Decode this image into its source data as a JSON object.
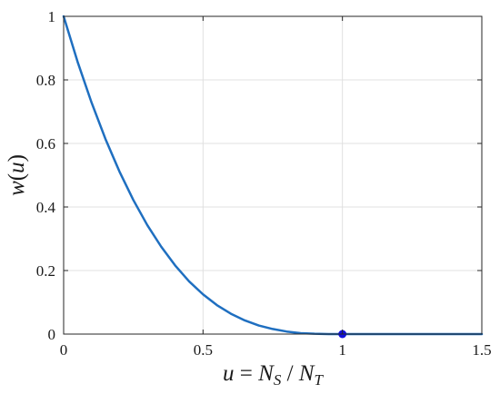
{
  "chart_data": {
    "type": "line",
    "title": "",
    "xlabel": "u = N_S / N_T",
    "ylabel": "w(u)",
    "xlim": [
      0,
      1.5
    ],
    "ylim": [
      0,
      1
    ],
    "grid": true,
    "x_ticks": [
      0,
      0.5,
      1,
      1.5
    ],
    "y_ticks": [
      0,
      0.2,
      0.4,
      0.6,
      0.8,
      1
    ],
    "x_tick_labels": [
      "0",
      "0.5",
      "1",
      "1.5"
    ],
    "y_tick_labels": [
      "0",
      "0.2",
      "0.4",
      "0.6",
      "0.8",
      "1"
    ],
    "series": [
      {
        "color": "#1f6fc0",
        "x": [
          0,
          0.05,
          0.1,
          0.15,
          0.2,
          0.25,
          0.3,
          0.35,
          0.4,
          0.45,
          0.5,
          0.55,
          0.6,
          0.65,
          0.7,
          0.75,
          0.8,
          0.85,
          0.9,
          0.95,
          1.0,
          1.05,
          1.1,
          1.15,
          1.2,
          1.25,
          1.3,
          1.35,
          1.4,
          1.45,
          1.5
        ],
        "y": [
          1.0,
          0.857,
          0.729,
          0.614,
          0.512,
          0.422,
          0.343,
          0.275,
          0.216,
          0.166,
          0.125,
          0.091,
          0.064,
          0.043,
          0.027,
          0.016,
          0.008,
          0.003,
          0.001,
          0.0,
          0.0,
          0.0,
          0.0,
          0.0,
          0.0,
          0.0,
          0.0,
          0.0,
          0.0,
          0.0,
          0.0
        ]
      }
    ],
    "markers": [
      {
        "x": 1,
        "y": 0,
        "color": "#1010dd"
      }
    ]
  }
}
